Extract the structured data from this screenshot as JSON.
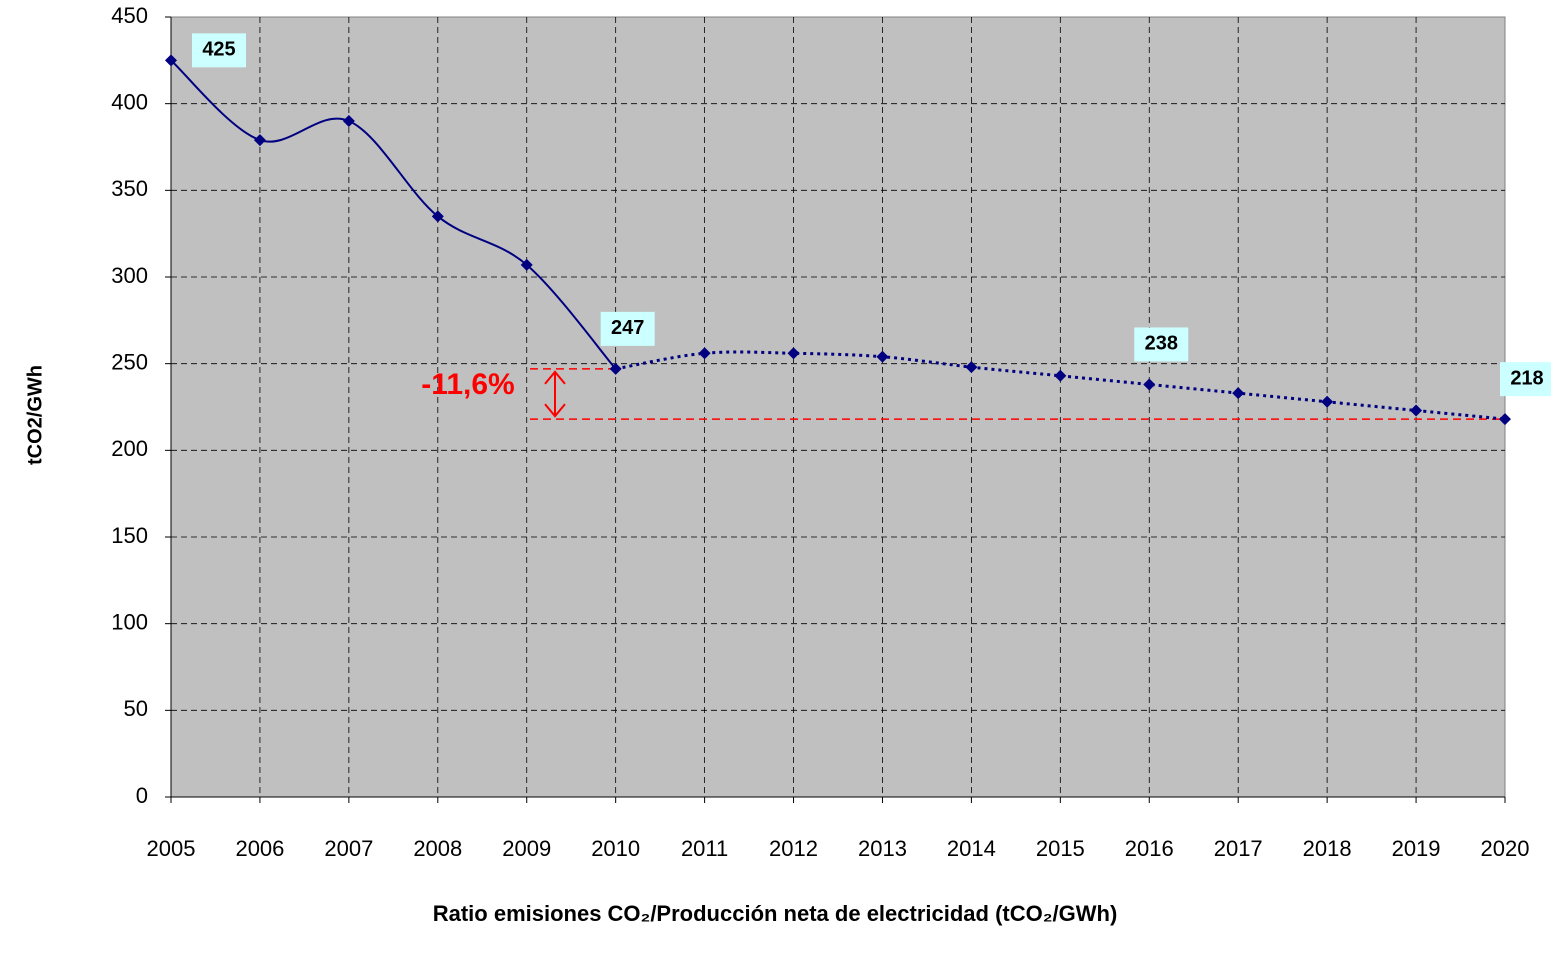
{
  "chart_data": {
    "type": "line",
    "y_label": "tCO2/GWh",
    "x_label": "Ratio emisiones CO₂/Producción neta de electricidad (tCO₂/GWh)",
    "x": [
      2005,
      2006,
      2007,
      2008,
      2009,
      2010,
      2011,
      2012,
      2013,
      2014,
      2015,
      2016,
      2017,
      2018,
      2019,
      2020
    ],
    "xlim": [
      2005,
      2020
    ],
    "xticks": [
      2005,
      2006,
      2007,
      2008,
      2009,
      2010,
      2011,
      2012,
      2013,
      2014,
      2015,
      2016,
      2017,
      2018,
      2019,
      2020
    ],
    "ylim": [
      0,
      450
    ],
    "yticks": [
      0,
      50,
      100,
      150,
      200,
      250,
      300,
      350,
      400,
      450
    ],
    "grid": true,
    "smooth": true,
    "series": [
      {
        "color": "#000080",
        "values": [
          425,
          379,
          390,
          335,
          307,
          247,
          256,
          256,
          254,
          248,
          243,
          238,
          233,
          228,
          223,
          218
        ],
        "dotted_from": 2010,
        "labeled": [
          0,
          5,
          11,
          15
        ]
      }
    ],
    "annotation": {
      "text": "-11,6%",
      "y": [
        247,
        218
      ],
      "color": "#ff0000"
    }
  }
}
